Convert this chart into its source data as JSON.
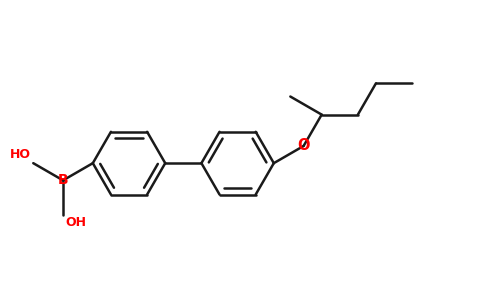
{
  "bg_color": "#ffffff",
  "bond_color": "#1a1a1a",
  "heteroatom_color": "#ff0000",
  "lw": 1.8,
  "dbo_r": 0.055,
  "r": 0.33,
  "bl": 0.33,
  "figsize": [
    4.84,
    3.0
  ],
  "dpi": 100,
  "xlim": [
    -0.55,
    3.85
  ],
  "ylim": [
    -0.15,
    2.55
  ]
}
